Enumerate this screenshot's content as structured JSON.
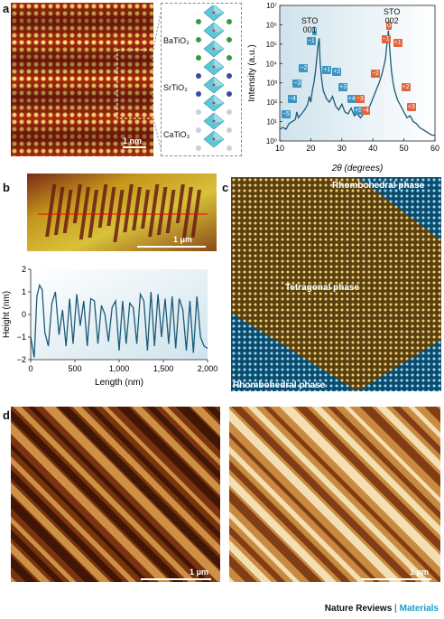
{
  "panel_labels": {
    "a": "a",
    "b": "b",
    "c": "c",
    "d": "d"
  },
  "panel_a": {
    "scale_label": "1 nm",
    "layers": [
      "BaTiO₃",
      "SrTiO₃",
      "CaTiO₃"
    ]
  },
  "xrd_chart": {
    "chart_data": {
      "type": "line",
      "xlabel": "2θ (degrees)",
      "ylabel": "Intensity (a.u.)",
      "xlim": [
        10,
        60
      ],
      "ylim_log10": [
        0,
        7
      ],
      "yscale": "log",
      "x_ticks": [
        "10",
        "20",
        "30",
        "40",
        "50",
        "60"
      ],
      "y_ticks": [
        "10⁰",
        "10¹",
        "10²",
        "10³",
        "10⁴",
        "10⁵",
        "10⁶",
        "10⁷"
      ],
      "annotations": [
        "STO\n001",
        "STO\n002"
      ],
      "series": [
        {
          "x": [
            10,
            11,
            12,
            13,
            14,
            15,
            15.5,
            16,
            17,
            18,
            19,
            19.5,
            20,
            20.5,
            21,
            21.5,
            22,
            22.3,
            22.7,
            23,
            23.5,
            24,
            25,
            26,
            27,
            28,
            29,
            30,
            31,
            32,
            33,
            34,
            35,
            36,
            37,
            38,
            39,
            40,
            41,
            42,
            43,
            44,
            44.6,
            45,
            45.5,
            46,
            46.5,
            47,
            48,
            49,
            50,
            51,
            52,
            53,
            54,
            55,
            56,
            57,
            58,
            59,
            60
          ],
          "y_log10": [
            0.6,
            0.7,
            0.6,
            0.9,
            1.0,
            1.1,
            1.5,
            1.2,
            1.4,
            1.6,
            1.9,
            2.3,
            2.0,
            2.6,
            3.0,
            3.6,
            4.4,
            4.9,
            5.3,
            4.1,
            3.2,
            2.6,
            2.2,
            2.0,
            2.3,
            1.8,
            1.6,
            1.9,
            1.5,
            1.4,
            1.7,
            1.3,
            1.4,
            1.2,
            1.4,
            1.6,
            1.8,
            2.2,
            2.6,
            3.0,
            3.5,
            4.2,
            5.1,
            5.7,
            4.6,
            3.6,
            3.0,
            2.6,
            2.1,
            1.8,
            1.5,
            1.2,
            1.3,
            1.0,
            0.9,
            0.7,
            0.6,
            0.5,
            0.4,
            0.3,
            0.3
          ]
        }
      ],
      "peak_labels_blue": [
        {
          "label": "−5",
          "x": 12,
          "ylog": 1.1
        },
        {
          "label": "−4",
          "x": 14,
          "ylog": 1.9
        },
        {
          "label": "−3",
          "x": 15.6,
          "ylog": 2.7
        },
        {
          "label": "−2",
          "x": 17.7,
          "ylog": 3.5
        },
        {
          "label": "−1",
          "x": 20.1,
          "ylog": 4.9
        },
        {
          "label": "0",
          "x": 21.8,
          "ylog": 5.4
        },
        {
          "label": "+1",
          "x": 25.2,
          "ylog": 3.4
        },
        {
          "label": "+2",
          "x": 28.4,
          "ylog": 3.3
        },
        {
          "label": "+3",
          "x": 30.4,
          "ylog": 2.5
        },
        {
          "label": "+4",
          "x": 33.2,
          "ylog": 1.9
        },
        {
          "label": "+5",
          "x": 35.3,
          "ylog": 1.3
        }
      ],
      "peak_labels_red": [
        {
          "label": "−4",
          "x": 37.6,
          "ylog": 1.3
        },
        {
          "label": "−3",
          "x": 35.8,
          "ylog": 1.9
        },
        {
          "label": "−2",
          "x": 40.8,
          "ylog": 3.2
        },
        {
          "label": "−1",
          "x": 44.2,
          "ylog": 5.0
        },
        {
          "label": "0",
          "x": 45.8,
          "ylog": 5.7
        },
        {
          "label": "+1",
          "x": 48.0,
          "ylog": 4.8
        },
        {
          "label": "+2",
          "x": 50.6,
          "ylog": 2.5
        },
        {
          "label": "+3",
          "x": 52.4,
          "ylog": 1.5
        }
      ]
    }
  },
  "panel_b": {
    "scale_label": "1 μm",
    "chart_data": {
      "type": "line",
      "xlabel": "Length (nm)",
      "ylabel": "Height (nm)",
      "xlim": [
        0,
        2000
      ],
      "ylim": [
        -2,
        2
      ],
      "x_ticks": [
        "0",
        "500",
        "1,000",
        "1,500",
        "2,000"
      ],
      "y_ticks": [
        "2",
        "1",
        "0",
        "−1",
        "−2"
      ],
      "series": [
        {
          "x": [
            0,
            40,
            70,
            100,
            130,
            160,
            200,
            240,
            280,
            320,
            360,
            400,
            440,
            480,
            520,
            560,
            600,
            640,
            680,
            720,
            760,
            800,
            840,
            880,
            920,
            960,
            1000,
            1040,
            1080,
            1120,
            1160,
            1200,
            1240,
            1280,
            1320,
            1360,
            1400,
            1440,
            1480,
            1520,
            1560,
            1600,
            1640,
            1680,
            1720,
            1760,
            1800,
            1840,
            1880,
            1920,
            1960,
            2000
          ],
          "y": [
            -1.0,
            -1.9,
            0.8,
            1.3,
            1.1,
            -0.8,
            -1.4,
            0.5,
            1.0,
            -0.9,
            0.2,
            -1.4,
            0.7,
            -1.3,
            0.9,
            -0.5,
            0.6,
            -1.4,
            0.7,
            0.6,
            -1.3,
            0.4,
            0.0,
            -1.2,
            0.3,
            0.6,
            -1.6,
            0.6,
            -1.3,
            0.5,
            0.3,
            -1.3,
            0.9,
            0.6,
            -1.6,
            1.0,
            -1.4,
            0.9,
            -1.0,
            0.7,
            -1.3,
            0.8,
            -1.5,
            0.7,
            0.2,
            -1.6,
            0.6,
            -1.7,
            0.8,
            -1.0,
            -1.4,
            -1.5
          ]
        }
      ]
    }
  },
  "panel_c": {
    "labels": [
      "Rhombohedral phase",
      "Tetragonal phase",
      "Rhombohedral phase"
    ]
  },
  "panel_d": {
    "scale_labels": [
      "1 μm",
      "1 μm"
    ]
  },
  "credit": {
    "journal": "Nature Reviews",
    "separator": " | ",
    "section": "Materials"
  },
  "colors": {
    "accent": "#1a9ec9",
    "line": "#1c5a78",
    "peak_blue": "#3c95c2",
    "peak_red": "#e0643c"
  }
}
